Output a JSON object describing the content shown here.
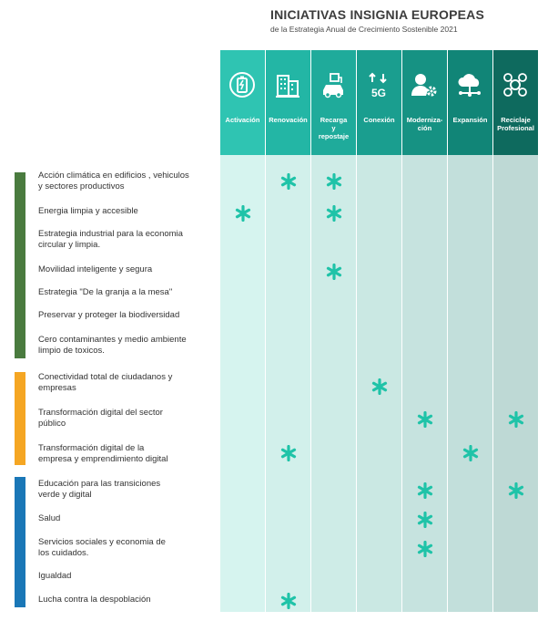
{
  "header": {
    "title": "INICIATIVAS INSIGNIA EUROPEAS",
    "subtitle": "de la Estrategia Anual de Crecimiento Sostenible 2021"
  },
  "columns": [
    {
      "id": "activacion",
      "label": "Activación",
      "icon": "battery-charging-icon",
      "header_color": "#2fc4b2",
      "body_color": "#d6f4ef"
    },
    {
      "id": "renovacion",
      "label": "Renovación",
      "icon": "buildings-icon",
      "header_color": "#23b6a5",
      "body_color": "#d2f0eb"
    },
    {
      "id": "recarga",
      "label": "Recarga\ny\nrepostaje",
      "icon": "car-charging-icon",
      "header_color": "#1fab9b",
      "body_color": "#ceece7"
    },
    {
      "id": "conexion",
      "label": "Conexión",
      "icon": "5g-signal-icon",
      "header_color": "#1a9e8f",
      "body_color": "#cae8e3"
    },
    {
      "id": "modernizacion",
      "label": "Moderniza-\nción",
      "icon": "user-gear-icon",
      "header_color": "#169283",
      "body_color": "#c6e3df"
    },
    {
      "id": "expansion",
      "label": "Expansión",
      "icon": "cloud-network-icon",
      "header_color": "#118577",
      "body_color": "#c2dfdb"
    },
    {
      "id": "reciclaje",
      "label": "Reciclaje\nProfesional",
      "icon": "skills-network-icon",
      "header_color": "#0e6a5e",
      "body_color": "#bed9d5"
    }
  ],
  "categories": [
    {
      "name": "green",
      "color": "#4a7b3f"
    },
    {
      "name": "digital",
      "color": "#f5a623"
    },
    {
      "name": "social",
      "color": "#1a77b7"
    }
  ],
  "rows": [
    {
      "label": "Acción climática en edificios , vehiculos\ny sectores productivos",
      "category": 0,
      "marks": [
        1,
        2
      ]
    },
    {
      "label": "Energia limpia y accesible",
      "category": 0,
      "marks": [
        0,
        2
      ]
    },
    {
      "label": "Estrategia industrial para la economia\ncircular y limpia.",
      "category": 0,
      "marks": []
    },
    {
      "label": "Movilidad inteligente y segura",
      "category": 0,
      "marks": [
        2
      ]
    },
    {
      "label": "Estrategia \"De la granja a la mesa\"",
      "category": 0,
      "marks": []
    },
    {
      "label": "Preservar y proteger la biodiversidad",
      "category": 0,
      "marks": []
    },
    {
      "label": "Cero contaminantes y medio ambiente\nlimpio de toxicos.",
      "category": 0,
      "marks": []
    },
    {
      "label": "Conectividad total de ciudadanos y\nempresas",
      "category": 1,
      "marks": [
        3
      ]
    },
    {
      "label": "Transformación digital del sector\npúblico",
      "category": 1,
      "marks": [
        4,
        6
      ]
    },
    {
      "label": "Transformación digital de la\nempresa y emprendimiento digital",
      "category": 1,
      "marks": [
        1,
        5
      ]
    },
    {
      "label": "Educación para las transiciones\nverde y digital",
      "category": 2,
      "marks": [
        4,
        6
      ]
    },
    {
      "label": "Salud",
      "category": 2,
      "marks": [
        4
      ]
    },
    {
      "label": "Servicios sociales y economia de\nlos cuidados.",
      "category": 2,
      "marks": [
        4
      ]
    },
    {
      "label": "Igualdad",
      "category": 2,
      "marks": []
    },
    {
      "label": "Lucha contra la despoblación",
      "category": 2,
      "marks": [
        1
      ]
    }
  ],
  "mark_color": "#1fc3a8"
}
